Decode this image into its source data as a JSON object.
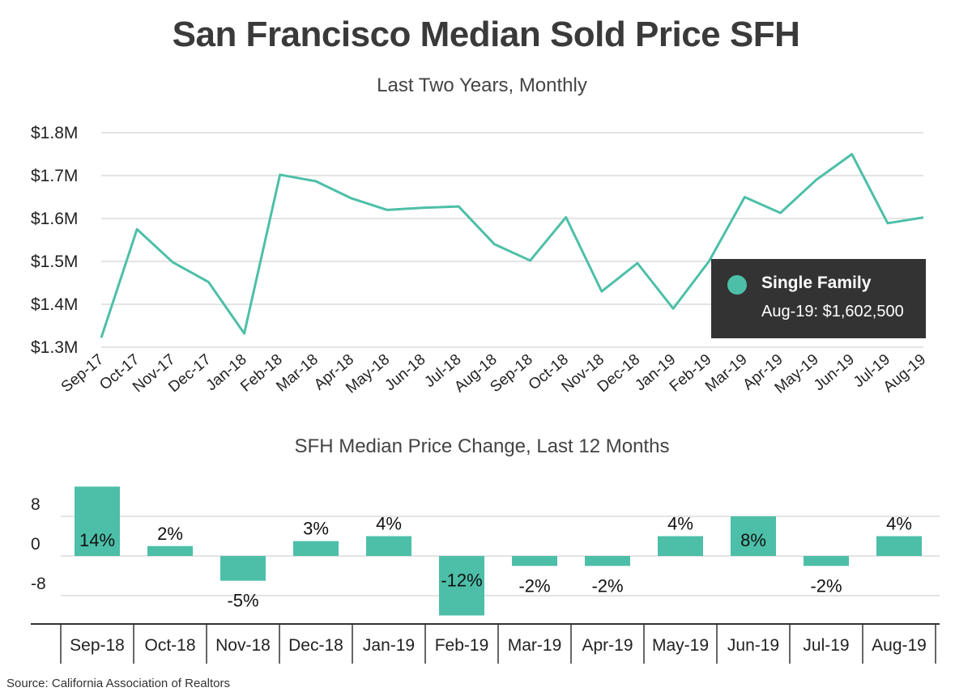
{
  "title": "San Francisco Median Sold Price SFH",
  "source": "Source:  California Association of Realtors",
  "colors": {
    "series": "#4dbfa8",
    "grid": "#dcdcdc",
    "tooltip_bg": "#333333"
  },
  "tooltip": {
    "series_name": "Single Family",
    "value_text": "Aug-19: $1,602,500"
  },
  "chart_data": [
    {
      "type": "line",
      "title": "Last Two Years, Monthly",
      "xlabel": "",
      "ylabel": "",
      "ylim": [
        1300000,
        1800000
      ],
      "yticks": [
        "$1.3M",
        "$1.4M",
        "$1.5M",
        "$1.6M",
        "$1.7M",
        "$1.8M"
      ],
      "grid": true,
      "categories": [
        "Sep-17",
        "Oct-17",
        "Nov-17",
        "Dec-17",
        "Jan-18",
        "Feb-18",
        "Mar-18",
        "Apr-18",
        "May-18",
        "Jun-18",
        "Jul-18",
        "Aug-18",
        "Sep-18",
        "Oct-18",
        "Nov-18",
        "Dec-18",
        "Jan-19",
        "Feb-19",
        "Mar-19",
        "Apr-19",
        "May-19",
        "Jun-19",
        "Jul-19",
        "Aug-19"
      ],
      "series": [
        {
          "name": "Single Family",
          "values": [
            1322000,
            1575000,
            1498000,
            1452000,
            1332000,
            1702000,
            1687000,
            1647000,
            1620000,
            1625000,
            1628000,
            1540000,
            1502000,
            1603000,
            1430000,
            1496000,
            1390000,
            1500000,
            1650000,
            1613000,
            1690000,
            1750000,
            1589000,
            1602500
          ]
        }
      ]
    },
    {
      "type": "bar",
      "title": "SFH Median Price Change, Last 12 Months",
      "xlabel": "",
      "ylabel": "",
      "ylim": [
        -16,
        16
      ],
      "yticks": [
        "-8",
        "0",
        "8"
      ],
      "grid": true,
      "categories": [
        "Sep-18",
        "Oct-18",
        "Nov-18",
        "Dec-18",
        "Jan-19",
        "Feb-19",
        "Mar-19",
        "Apr-19",
        "May-19",
        "Jun-19",
        "Jul-19",
        "Aug-19"
      ],
      "values": [
        14,
        2,
        -5,
        3,
        4,
        -12,
        -2,
        -2,
        4,
        8,
        -2,
        4
      ],
      "labels": [
        "14%",
        "2%",
        "-5%",
        "3%",
        "4%",
        "-12%",
        "-2%",
        "-2%",
        "4%",
        "8%",
        "-2%",
        "4%"
      ]
    }
  ]
}
